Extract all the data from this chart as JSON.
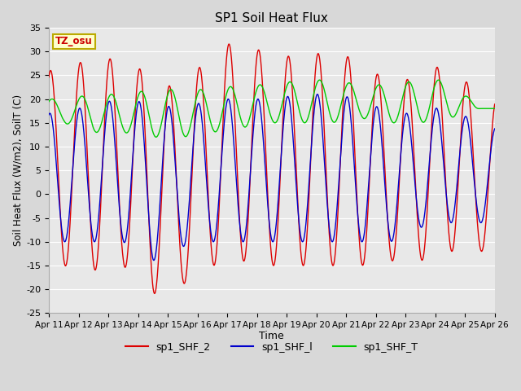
{
  "title": "SP1 Soil Heat Flux",
  "xlabel": "Time",
  "ylabel": "Soil Heat Flux (W/m2), SoilT (C)",
  "ylim": [
    -25,
    35
  ],
  "yticks": [
    -25,
    -20,
    -15,
    -10,
    -5,
    0,
    5,
    10,
    15,
    20,
    25,
    30,
    35
  ],
  "xtick_labels": [
    "Apr 11",
    "Apr 12",
    "Apr 13",
    "Apr 14",
    "Apr 15",
    "Apr 16",
    "Apr 17",
    "Apr 18",
    "Apr 19",
    "Apr 20",
    "Apr 21",
    "Apr 22",
    "Apr 23",
    "Apr 24",
    "Apr 25",
    "Apr 26"
  ],
  "color_shf2": "#dd0000",
  "color_shf1": "#0000cc",
  "color_shft": "#00cc00",
  "legend_labels": [
    "sp1_SHF_2",
    "sp1_SHF_l",
    "sp1_SHF_T"
  ],
  "tz_label": "TZ_osu",
  "bg_color": "#e8e8e8",
  "grid_color": "#ffffff",
  "shf2_peaks": [
    26,
    29,
    28,
    25,
    21,
    31,
    32,
    29,
    29,
    30,
    28,
    23,
    25,
    28,
    20
  ],
  "shf2_troughs": [
    -15,
    -16,
    -15,
    -21,
    -19,
    -15,
    -14,
    -15,
    -15,
    -15,
    -15,
    -14,
    -14,
    -12
  ],
  "shf1_peaks": [
    17,
    19,
    20,
    19,
    18,
    20,
    20,
    20,
    21,
    21,
    20,
    17,
    17,
    19,
    14
  ],
  "shf1_troughs": [
    -10,
    -10,
    -10,
    -14,
    -11,
    -10,
    -10,
    -10,
    -10,
    -10,
    -10,
    -10,
    -7,
    -6
  ],
  "shft_peaks": [
    20,
    21,
    21,
    22,
    22,
    22,
    23,
    23,
    24,
    24,
    23,
    23,
    24,
    24
  ],
  "shft_troughs": [
    13,
    13,
    12,
    12,
    13,
    14,
    15,
    15,
    15,
    16,
    15,
    15,
    16,
    18
  ],
  "phase_shf2": 1.2,
  "phase_shf1": 1.35,
  "phase_shft": 0.9
}
